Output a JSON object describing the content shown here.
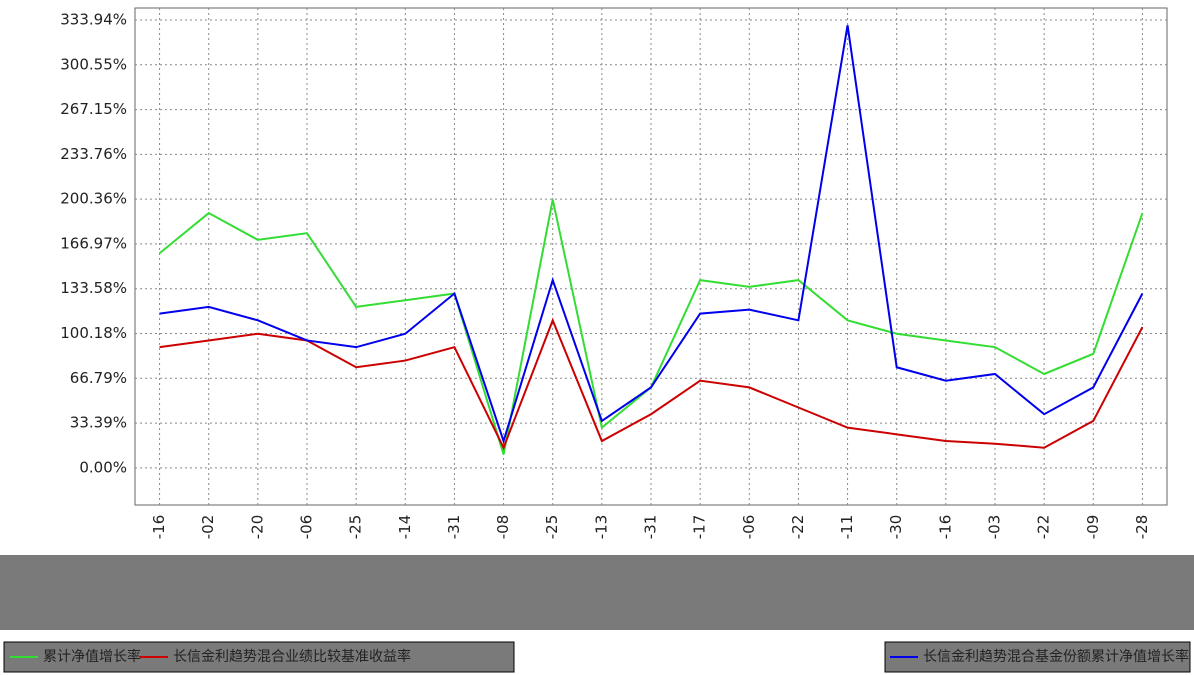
{
  "chart_data": {
    "type": "line",
    "categories": [
      "-16",
      "-02",
      "-20",
      "-06",
      "-25",
      "-14",
      "-31",
      "-08",
      "-25",
      "-13",
      "-31",
      "-17",
      "-06",
      "-22",
      "-11",
      "-30",
      "-16",
      "-03",
      "-22",
      "-09",
      "-28"
    ],
    "series": [
      {
        "name": "累计净值增长率",
        "color": "#33dd33",
        "values": [
          160,
          190,
          170,
          175,
          120,
          125,
          130,
          10,
          200,
          30,
          60,
          140,
          135,
          140,
          110,
          100,
          95,
          90,
          70,
          85,
          190
        ]
      },
      {
        "name": "长信金利趋势混合业绩比较基准收益率",
        "color": "#cc0000",
        "values": [
          90,
          95,
          100,
          95,
          75,
          80,
          90,
          15,
          110,
          20,
          40,
          65,
          60,
          45,
          30,
          25,
          20,
          18,
          15,
          35,
          105
        ]
      },
      {
        "name": "长信金利趋势混合基金份额累计净值增长率",
        "color": "#0000ee",
        "values": [
          115,
          120,
          110,
          95,
          90,
          100,
          130,
          20,
          140,
          35,
          60,
          115,
          118,
          110,
          330,
          75,
          65,
          70,
          40,
          60,
          130
        ]
      }
    ],
    "ylim": [
      -27.7,
      342.9
    ],
    "yticks": [
      {
        "value": 0,
        "label": "0.00%"
      },
      {
        "value": 33.39,
        "label": "33.39%"
      },
      {
        "value": 66.79,
        "label": "66.79%"
      },
      {
        "value": 100.18,
        "label": "100.18%"
      },
      {
        "value": 133.58,
        "label": "133.58%"
      },
      {
        "value": 166.97,
        "label": "166.97%"
      },
      {
        "value": 200.36,
        "label": "200.36%"
      },
      {
        "value": 233.76,
        "label": "233.76%"
      },
      {
        "value": 267.15,
        "label": "267.15%"
      },
      {
        "value": 300.55,
        "label": "300.55%"
      },
      {
        "value": 333.94,
        "label": "333.94%"
      }
    ],
    "grid": true
  }
}
